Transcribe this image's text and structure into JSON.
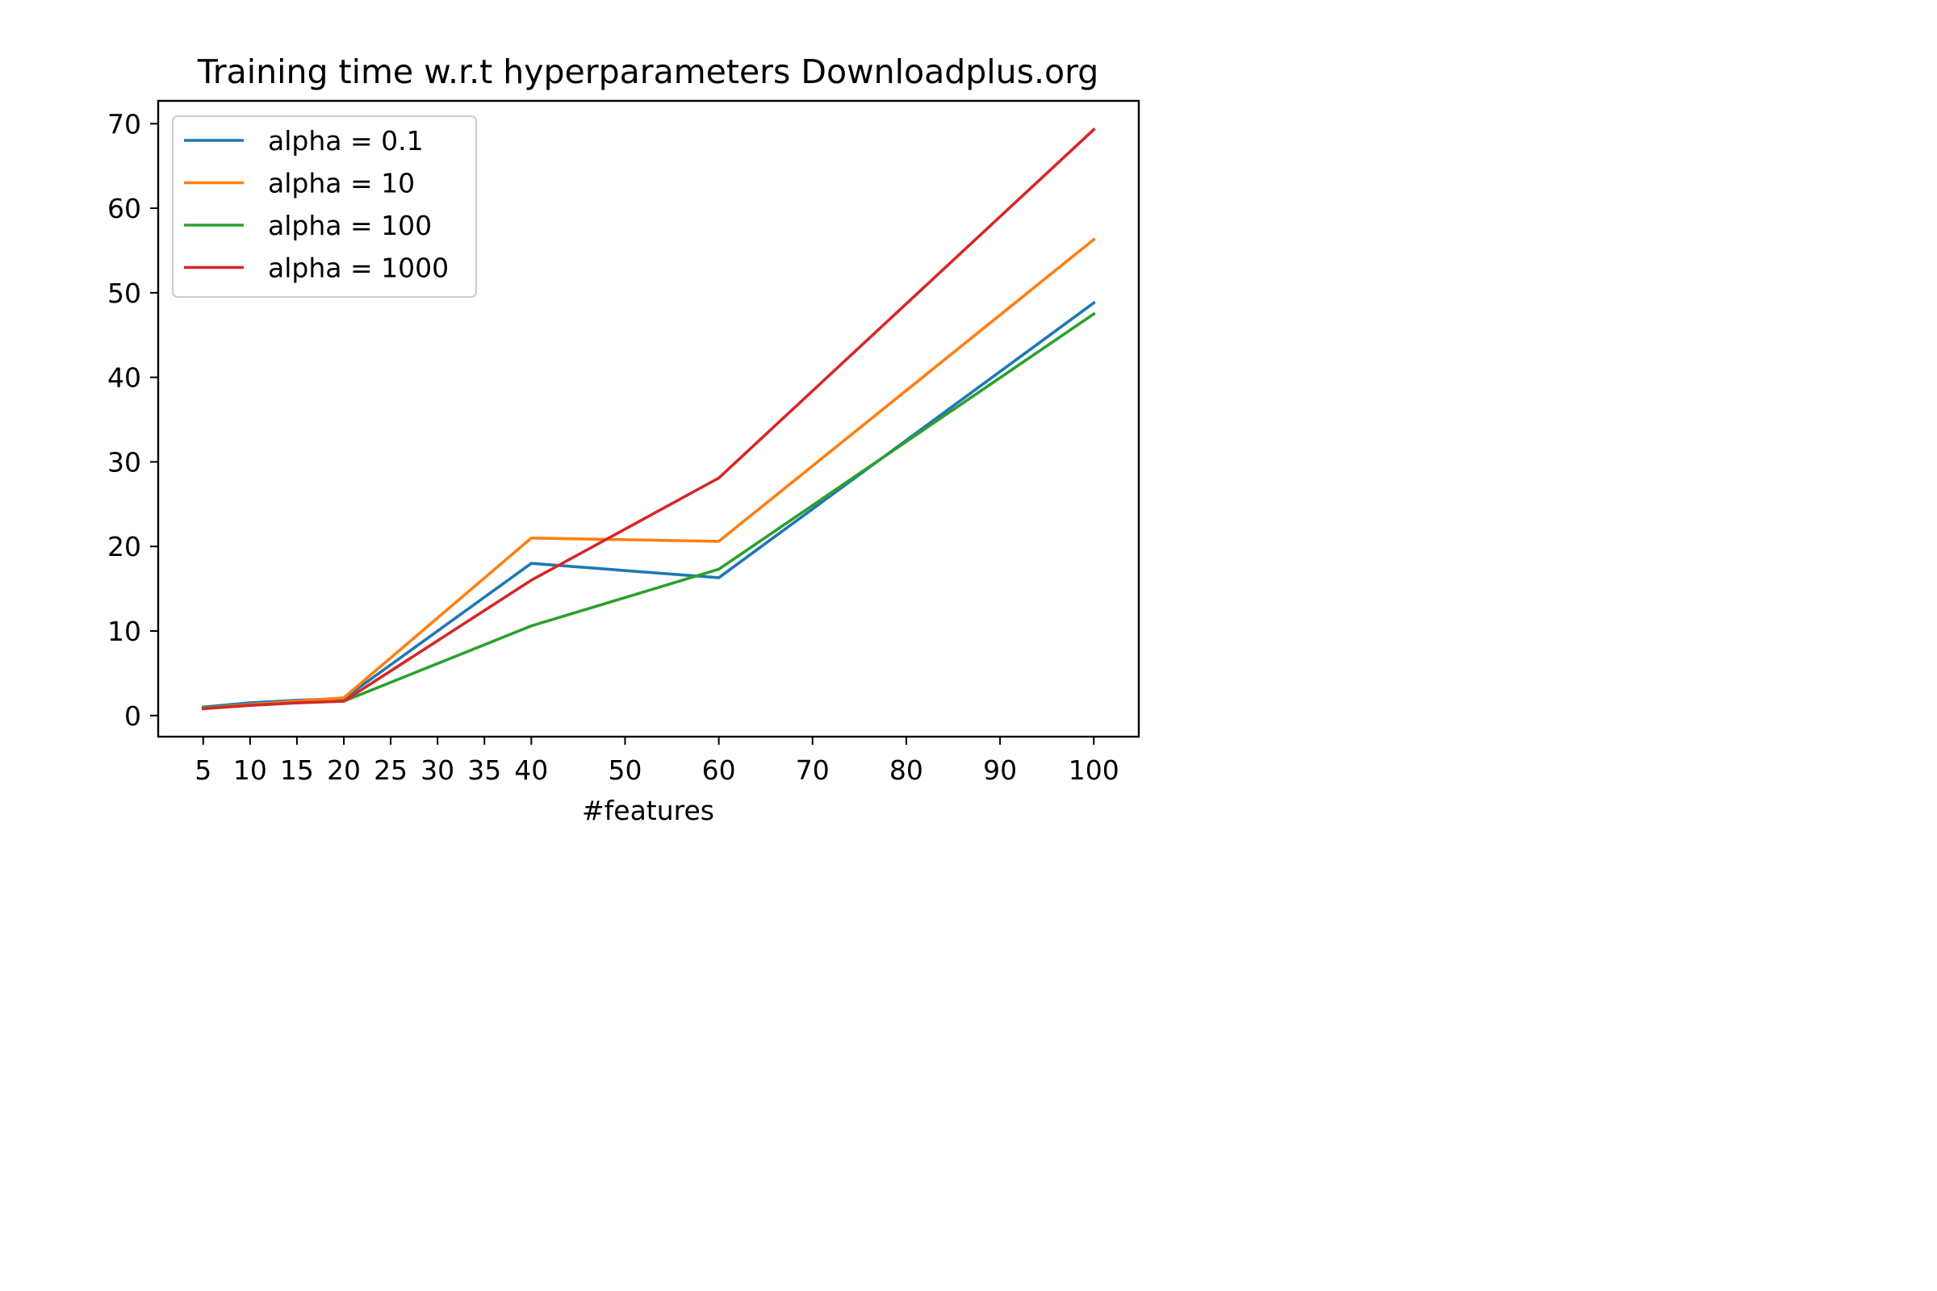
{
  "chart_data": {
    "type": "line",
    "title": "Training time w.r.t hyperparameters Downloadplus.org",
    "xlabel": "#features",
    "ylabel": "",
    "x": [
      5,
      10,
      15,
      20,
      40,
      60,
      100
    ],
    "xticks": [
      5,
      10,
      15,
      20,
      25,
      30,
      35,
      40,
      50,
      60,
      70,
      80,
      90,
      100
    ],
    "yticks": [
      0,
      10,
      20,
      30,
      40,
      50,
      60,
      70
    ],
    "xlim": [
      0.2,
      104.8
    ],
    "ylim": [
      -2.5,
      72.7
    ],
    "grid": false,
    "legend_position": "top-left",
    "series": [
      {
        "name": "alpha = 0.1",
        "color": "#1f77b4",
        "values": [
          1.0,
          1.5,
          1.8,
          2.0,
          18.0,
          16.3,
          48.8
        ]
      },
      {
        "name": "alpha = 10",
        "color": "#ff7f0e",
        "values": [
          0.9,
          1.3,
          1.7,
          2.1,
          21.0,
          20.6,
          56.3
        ]
      },
      {
        "name": "alpha = 100",
        "color": "#2ca02c",
        "values": [
          0.9,
          1.2,
          1.5,
          1.7,
          10.6,
          17.3,
          47.5
        ]
      },
      {
        "name": "alpha = 1000",
        "color": "#d62728",
        "values": [
          0.8,
          1.2,
          1.5,
          1.7,
          16.0,
          28.1,
          69.3
        ]
      }
    ]
  }
}
